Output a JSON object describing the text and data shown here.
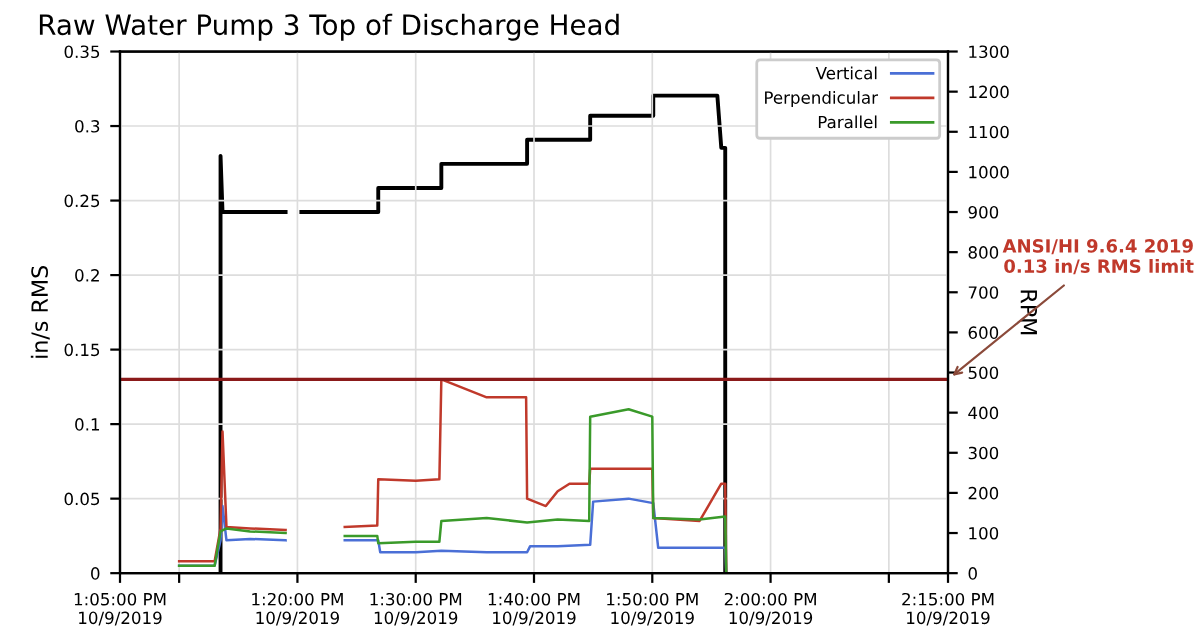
{
  "chart_data": {
    "type": "line",
    "title": "Raw Water Pump 3 Top of Discharge Head",
    "ylabel": "in/s RMS",
    "y2label": "RPM",
    "xlim": [
      "2019-10-09T13:05",
      "2019-10-09T14:15"
    ],
    "xticks": [
      {
        "value": "2019-10-09T13:05",
        "label": "1:05:00 PM\n10/9/2019"
      },
      {
        "value": "2019-10-09T13:10",
        "label": null
      },
      {
        "value": "2019-10-09T13:20",
        "label": "1:20:00 PM\n10/9/2019"
      },
      {
        "value": "2019-10-09T13:30",
        "label": "1:30:00 PM\n10/9/2019"
      },
      {
        "value": "2019-10-09T13:40",
        "label": "1:40:00 PM\n10/9/2019"
      },
      {
        "value": "2019-10-09T13:50",
        "label": "1:50:00 PM\n10/9/2019"
      },
      {
        "value": "2019-10-09T14:00",
        "label": "2:00:00 PM\n10/9/2019"
      },
      {
        "value": "2019-10-09T14:10",
        "label": null
      },
      {
        "value": "2019-10-09T14:15",
        "label": "2:15:00 PM\n10/9/2019"
      }
    ],
    "ylim": [
      0,
      0.35
    ],
    "yticks": [
      0,
      0.05,
      0.1,
      0.15,
      0.2,
      0.25,
      0.3,
      0.35
    ],
    "y2lim": [
      0,
      1300
    ],
    "y2ticks": [
      0,
      100,
      200,
      300,
      400,
      500,
      600,
      700,
      800,
      900,
      1000,
      1100,
      1200,
      1300
    ],
    "grid": true,
    "legend": "top right",
    "ref_lines": [
      {
        "axis": "y",
        "value": 0.13,
        "label": "ANSI/HI 9.6.4 2019\n0.13 in/s RMS limit",
        "color": "#8b1a1a"
      }
    ],
    "series": [
      {
        "name": "Vertical",
        "color": "#4a6fd6",
        "x": [
          "2019-10-09T13:10",
          "2019-10-09T13:13",
          "2019-10-09T13:13:30",
          "2019-10-09T13:13:40",
          "2019-10-09T13:14",
          "2019-10-09T13:16",
          "2019-10-09T13:19",
          "2019-10-09T13:20:20",
          "2019-10-09T13:24",
          "2019-10-09T13:26:50",
          "2019-10-09T13:27",
          "2019-10-09T13:30",
          "2019-10-09T13:32:10",
          "2019-10-09T13:36",
          "2019-10-09T13:39:25",
          "2019-10-09T13:39:40",
          "2019-10-09T13:42",
          "2019-10-09T13:44:45",
          "2019-10-09T13:45",
          "2019-10-09T13:48",
          "2019-10-09T13:50:05",
          "2019-10-09T13:50:30",
          "2019-10-09T13:54",
          "2019-10-09T13:56:10",
          "2019-10-09T13:56:15"
        ],
        "values": [
          0.005,
          0.005,
          0.022,
          0.045,
          0.022,
          0.023,
          0.022,
          null,
          0.022,
          0.022,
          0.014,
          0.014,
          0.015,
          0.014,
          0.014,
          0.018,
          0.018,
          0.019,
          0.048,
          0.05,
          0.047,
          0.017,
          0.017,
          0.017,
          0.0
        ]
      },
      {
        "name": "Perpendicular",
        "color": "#c0392b",
        "x": [
          "2019-10-09T13:10",
          "2019-10-09T13:13",
          "2019-10-09T13:13:30",
          "2019-10-09T13:13:40",
          "2019-10-09T13:14",
          "2019-10-09T13:16",
          "2019-10-09T13:19",
          "2019-10-09T13:20:20",
          "2019-10-09T13:24",
          "2019-10-09T13:26:45",
          "2019-10-09T13:26:50",
          "2019-10-09T13:30",
          "2019-10-09T13:32",
          "2019-10-09T13:32:10",
          "2019-10-09T13:36",
          "2019-10-09T13:39:20",
          "2019-10-09T13:39:25",
          "2019-10-09T13:41",
          "2019-10-09T13:42",
          "2019-10-09T13:43",
          "2019-10-09T13:44:40",
          "2019-10-09T13:44:45",
          "2019-10-09T13:48",
          "2019-10-09T13:50",
          "2019-10-09T13:50:05",
          "2019-10-09T13:54",
          "2019-10-09T13:55:50",
          "2019-10-09T13:56:10",
          "2019-10-09T13:56:15"
        ],
        "values": [
          0.008,
          0.008,
          0.03,
          0.095,
          0.031,
          0.03,
          0.029,
          null,
          0.031,
          0.032,
          0.063,
          0.062,
          0.063,
          0.13,
          0.118,
          0.118,
          0.05,
          0.045,
          0.055,
          0.06,
          0.06,
          0.07,
          0.07,
          0.07,
          0.037,
          0.035,
          0.06,
          0.06,
          0.0
        ]
      },
      {
        "name": "Parallel",
        "color": "#3a9a2a",
        "x": [
          "2019-10-09T13:10",
          "2019-10-09T13:13",
          "2019-10-09T13:13:30",
          "2019-10-09T13:14",
          "2019-10-09T13:16",
          "2019-10-09T13:19",
          "2019-10-09T13:20:20",
          "2019-10-09T13:24",
          "2019-10-09T13:26:45",
          "2019-10-09T13:26:50",
          "2019-10-09T13:30",
          "2019-10-09T13:32",
          "2019-10-09T13:32:10",
          "2019-10-09T13:36",
          "2019-10-09T13:39:25",
          "2019-10-09T13:42",
          "2019-10-09T13:44:40",
          "2019-10-09T13:44:45",
          "2019-10-09T13:48",
          "2019-10-09T13:50",
          "2019-10-09T13:50:05",
          "2019-10-09T13:54",
          "2019-10-09T13:56:10",
          "2019-10-09T13:56:15"
        ],
        "values": [
          0.005,
          0.005,
          0.028,
          0.03,
          0.028,
          0.027,
          null,
          0.025,
          0.025,
          0.02,
          0.021,
          0.021,
          0.035,
          0.037,
          0.034,
          0.036,
          0.035,
          0.105,
          0.11,
          0.105,
          0.037,
          0.036,
          0.038,
          0.0
        ]
      },
      {
        "color": "#000000",
        "axis": "y2",
        "x": [
          "2019-10-09T13:13:30",
          "2019-10-09T13:13:30",
          "2019-10-09T13:13:40",
          "2019-10-09T13:19",
          "2019-10-09T13:19:40",
          "2019-10-09T13:20:20",
          "2019-10-09T13:26:50",
          "2019-10-09T13:26:50",
          "2019-10-09T13:32:10",
          "2019-10-09T13:32:10",
          "2019-10-09T13:39:25",
          "2019-10-09T13:39:25",
          "2019-10-09T13:44:45",
          "2019-10-09T13:44:45",
          "2019-10-09T13:50:05",
          "2019-10-09T13:50:05",
          "2019-10-09T13:55:30",
          "2019-10-09T13:55:50",
          "2019-10-09T13:56:10",
          "2019-10-09T13:56:10"
        ],
        "values": [
          0,
          1040,
          900,
          900,
          null,
          900,
          900,
          960,
          960,
          1020,
          1020,
          1080,
          1080,
          1140,
          1140,
          1190,
          1190,
          1060,
          1060,
          0
        ]
      }
    ]
  }
}
